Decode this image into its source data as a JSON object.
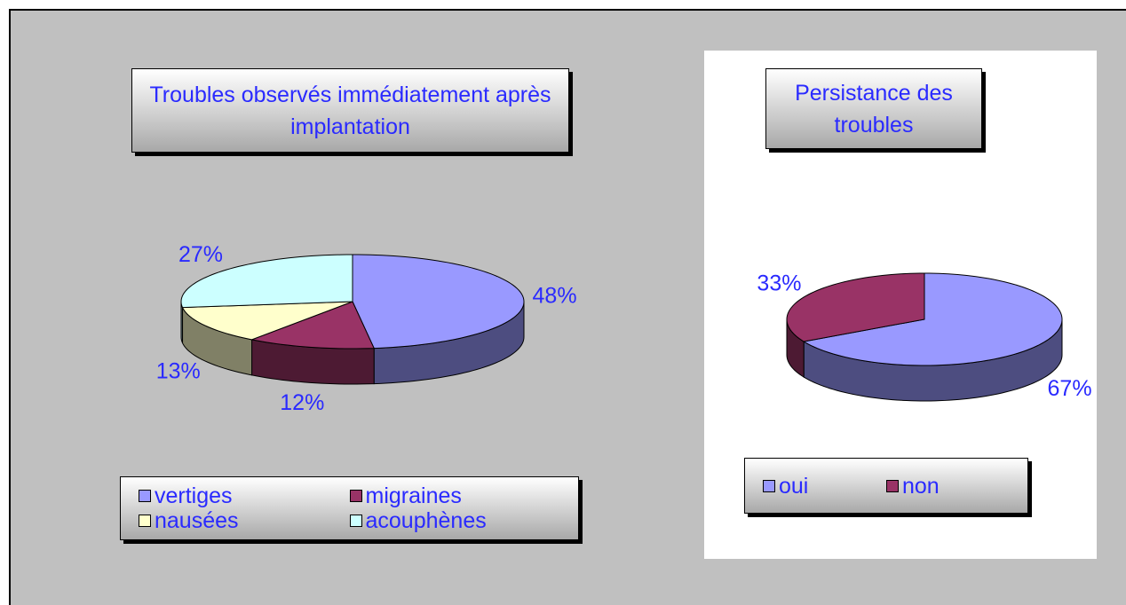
{
  "chart_data": [
    {
      "type": "pie",
      "title": "Troubles observés immédiatement après implantation",
      "categories": [
        "vertiges",
        "migraines",
        "nausées",
        "acouphènes"
      ],
      "values": [
        48,
        12,
        13,
        27
      ],
      "value_labels": [
        "48%",
        "12%",
        "13%",
        "27%"
      ],
      "colors": [
        "#9999ff",
        "#993366",
        "#ffffcc",
        "#ccffff"
      ]
    },
    {
      "type": "pie",
      "title": "Persistance des troubles",
      "categories": [
        "oui",
        "non"
      ],
      "values": [
        67,
        33
      ],
      "value_labels": [
        "67%",
        "33%"
      ],
      "colors": [
        "#9999ff",
        "#993366"
      ]
    }
  ]
}
